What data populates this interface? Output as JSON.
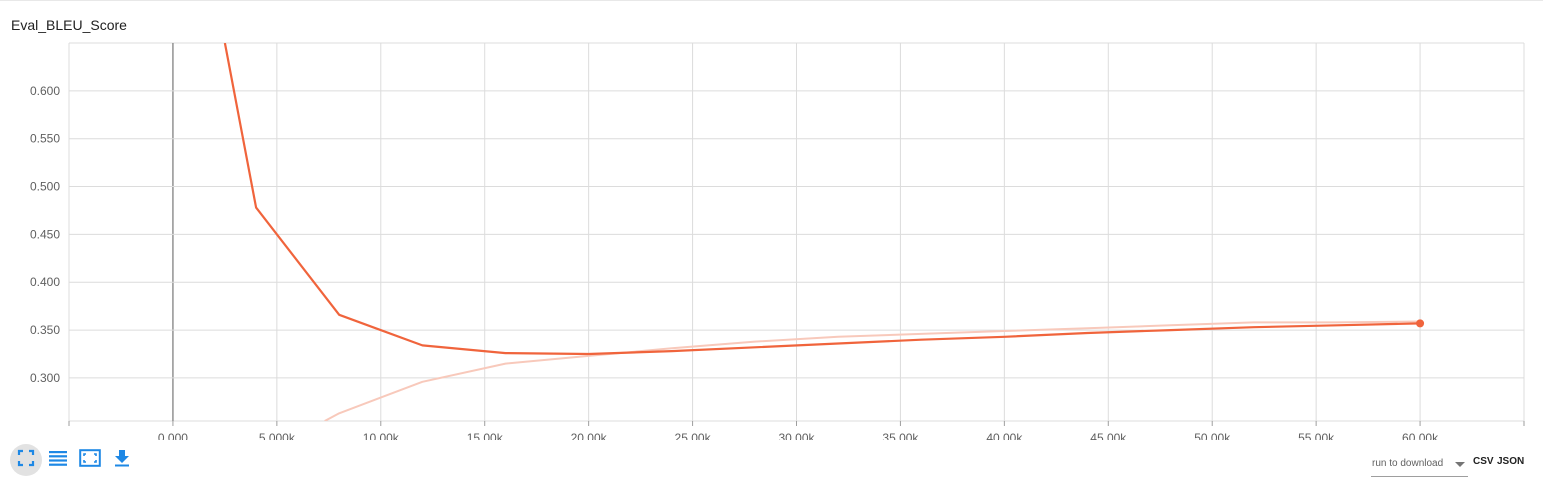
{
  "title": "Eval_BLEU_Score",
  "colors": {
    "line": "#f0643c",
    "raw_line": "#f8c9bb",
    "grid": "#dcdcdc",
    "y_axis_zero": "#8a8a8a",
    "accent_blue": "#1e88e5"
  },
  "toolbar": [
    {
      "name": "expand-chart",
      "icon": "fullscreen-icon"
    },
    {
      "name": "toggle-log-scale",
      "icon": "list-lines-icon"
    },
    {
      "name": "fit-domain",
      "icon": "fit-to-data-icon"
    },
    {
      "name": "download-image",
      "icon": "download-icon"
    }
  ],
  "download": {
    "select_label": "run to download",
    "csv_label": "CSV",
    "json_label": "JSON"
  },
  "chart_data": {
    "type": "line",
    "title": "Eval_BLEU_Score",
    "xlim": [
      -5000,
      65000
    ],
    "ylim": [
      0.255,
      0.65
    ],
    "x_ticks": [
      0,
      5000,
      10000,
      15000,
      20000,
      25000,
      30000,
      35000,
      40000,
      45000,
      50000,
      55000,
      60000
    ],
    "x_tick_labels": [
      "0.000",
      "5.000k",
      "10.00k",
      "15.00k",
      "20.00k",
      "25.00k",
      "30.00k",
      "35.00k",
      "40.00k",
      "45.00k",
      "50.00k",
      "55.00k",
      "60.00k"
    ],
    "y_ticks": [
      0.3,
      0.35,
      0.4,
      0.45,
      0.5,
      0.55,
      0.6
    ],
    "y_tick_labels": [
      "0.300",
      "0.350",
      "0.400",
      "0.450",
      "0.500",
      "0.550",
      "0.600"
    ],
    "grid": true,
    "series": [
      {
        "role": "smoothed",
        "x": [
          2500,
          4000,
          8000,
          12000,
          16000,
          20000,
          24000,
          28000,
          32000,
          36000,
          40000,
          44000,
          48000,
          52000,
          56000,
          60000
        ],
        "y": [
          0.65,
          0.478,
          0.366,
          0.334,
          0.326,
          0.325,
          0.328,
          0.332,
          0.336,
          0.34,
          0.343,
          0.347,
          0.35,
          0.353,
          0.355,
          0.357
        ]
      },
      {
        "role": "raw",
        "x": [
          7300,
          8000,
          12000,
          16000,
          20000,
          24000,
          28000,
          32000,
          36000,
          40000,
          44000,
          48000,
          52000,
          56000,
          60000
        ],
        "y": [
          0.255,
          0.263,
          0.296,
          0.315,
          0.323,
          0.331,
          0.338,
          0.343,
          0.346,
          0.349,
          0.352,
          0.355,
          0.358,
          0.358,
          0.359
        ]
      }
    ],
    "last_point": {
      "x": 60000,
      "y": 0.357
    }
  }
}
